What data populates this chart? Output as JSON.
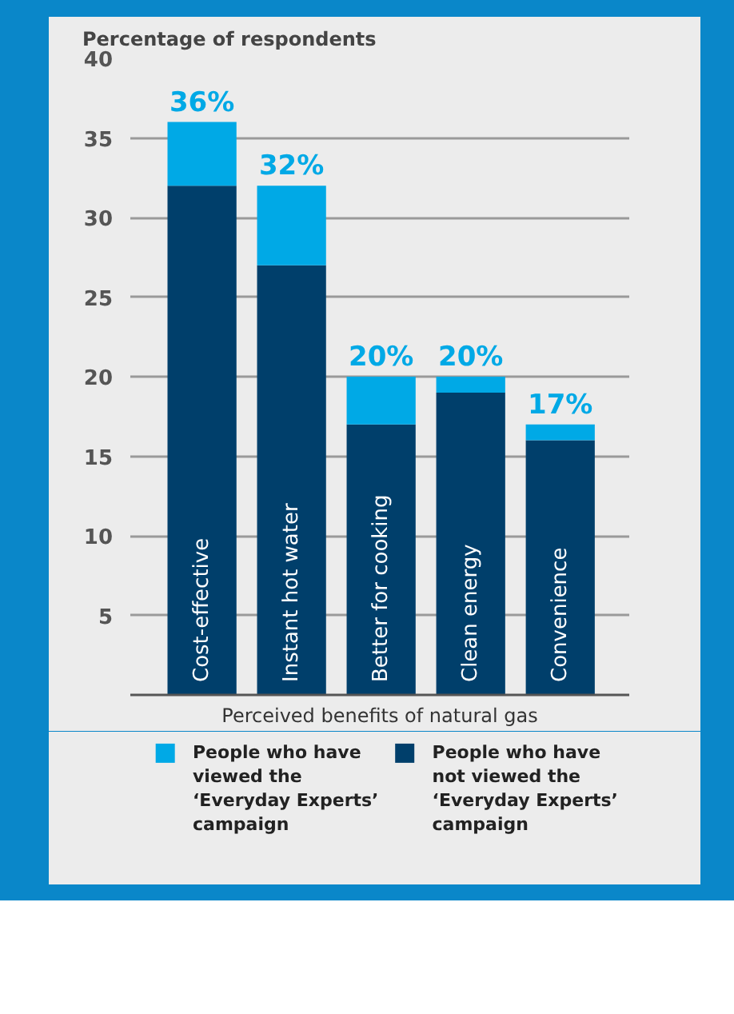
{
  "chart_data": {
    "type": "bar",
    "stacked": true,
    "ylabel": "Percentage of respondents",
    "xlabel": "Perceived benefits of natural gas",
    "categories": [
      "Cost-effective",
      "Instant hot water",
      "Better for cooking",
      "Clean energy",
      "Convenience"
    ],
    "series": [
      {
        "name": "People who have not viewed the ‘Everyday Experts’ campaign",
        "color": "#003f6b",
        "values": [
          32,
          27,
          17,
          19,
          16
        ]
      },
      {
        "name": "People who have viewed the ‘Everyday Experts’ campaign",
        "color": "#00a9e6",
        "values": [
          4,
          5,
          3,
          1,
          1
        ]
      }
    ],
    "totals": [
      "36%",
      "32%",
      "20%",
      "20%",
      "17%"
    ],
    "ylim": [
      0,
      40
    ],
    "yticks": [
      5,
      10,
      15,
      20,
      25,
      30,
      35,
      40
    ],
    "grid": "y",
    "legend": "bottom"
  }
}
